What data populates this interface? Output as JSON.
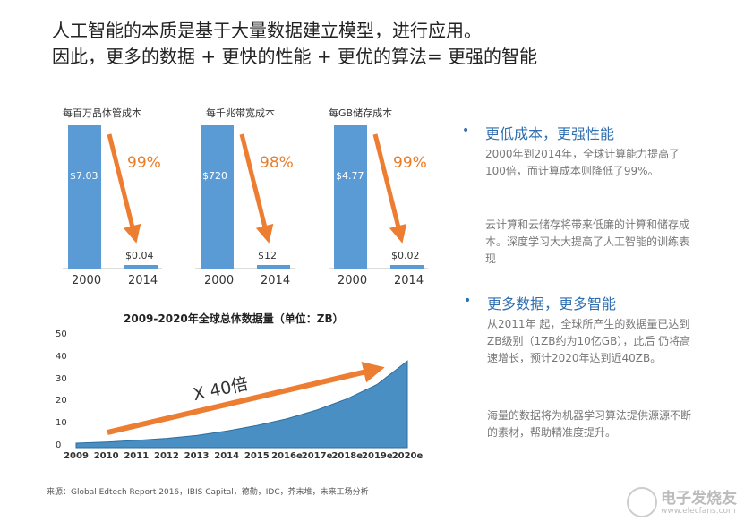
{
  "header": {
    "line1": "人工智能的本质是基于大量数据建立模型，进行应用。",
    "line2": "因此，更多的数据 + 更快的性能 + 更优的算法= 更强的智能"
  },
  "colors": {
    "bar": "#5b9bd5",
    "arrow": "#ed7d31",
    "area": "#4a8fc4",
    "heading": "#2f6fb0"
  },
  "chart_data": [
    {
      "type": "bar",
      "title": "每百万晶体管成本",
      "categories": [
        "2000",
        "2014"
      ],
      "values": [
        7.03,
        0.04
      ],
      "data_labels": [
        "$7.03",
        "$0.04"
      ],
      "annotation": "99%"
    },
    {
      "type": "bar",
      "title": "每千兆带宽成本",
      "categories": [
        "2000",
        "2014"
      ],
      "values": [
        720,
        12
      ],
      "data_labels": [
        "$720",
        "$12"
      ],
      "annotation": "98%"
    },
    {
      "type": "bar",
      "title": "每GB储存成本",
      "categories": [
        "2000",
        "2014"
      ],
      "values": [
        4.77,
        0.02
      ],
      "data_labels": [
        "$4.77",
        "$0.02"
      ],
      "annotation": "99%"
    },
    {
      "type": "area",
      "title": "2009-2020年全球总体数据量（单位：ZB）",
      "categories": [
        "2009",
        "2010",
        "2011",
        "2012",
        "2013",
        "2014",
        "2015",
        "2016e",
        "2017e",
        "2018e",
        "2019e",
        "2020e"
      ],
      "values": [
        2,
        2.5,
        3.3,
        4.2,
        5.5,
        7.5,
        10,
        13,
        17,
        22,
        28.5,
        39
      ],
      "yticks": [
        "0",
        "10",
        "20",
        "30",
        "40",
        "50"
      ],
      "ylim": [
        0,
        50
      ],
      "annotation": "X 40倍"
    }
  ],
  "source": "来源：Global Edtech Report 2016，IBIS Capital，德勤，IDC，芥末堆，未来工场分析",
  "right": {
    "sections": [
      {
        "bullet": "•",
        "heading": "更低成本，更强性能",
        "paras": [
          "2000年到2014年，全球计算能力提高了100倍，而计算成本则降低了99%。",
          "云计算和云储存将带来低廉的计算和储存成本。深度学习大大提高了人工智能的训练表现"
        ]
      },
      {
        "bullet": "•",
        "heading": "更多数据，更多智能",
        "paras": [
          "从2011年 起，全球所产生的数据量已达到ZB级别（1ZB约为10亿GB），此后 仍将高速增长，预计2020年达到近40ZB。",
          "海量的数据将为机器学习算法提供源源不断的素材，帮助精准度提升。"
        ]
      }
    ]
  },
  "logo": {
    "name": "电子发烧友",
    "url": "www.elecfans.com"
  }
}
